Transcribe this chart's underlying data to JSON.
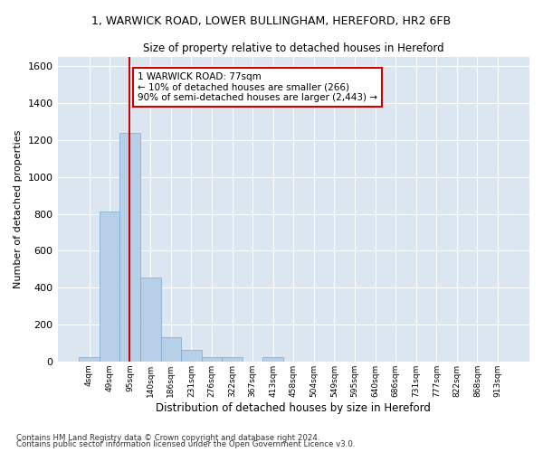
{
  "title_line1": "1, WARWICK ROAD, LOWER BULLINGHAM, HEREFORD, HR2 6FB",
  "title_line2": "Size of property relative to detached houses in Hereford",
  "xlabel": "Distribution of detached houses by size in Hereford",
  "ylabel": "Number of detached properties",
  "footnote1": "Contains HM Land Registry data © Crown copyright and database right 2024.",
  "footnote2": "Contains public sector information licensed under the Open Government Licence v3.0.",
  "annotation_line1": "1 WARWICK ROAD: 77sqm",
  "annotation_line2": "← 10% of detached houses are smaller (266)",
  "annotation_line3": "90% of semi-detached houses are larger (2,443) →",
  "bar_color": "#b8cfe8",
  "bar_edge_color": "#7aaad0",
  "vline_color": "#cc0000",
  "background_color": "#dce6f0",
  "grid_color": "#ffffff",
  "categories": [
    "4sqm",
    "49sqm",
    "95sqm",
    "140sqm",
    "186sqm",
    "231sqm",
    "276sqm",
    "322sqm",
    "367sqm",
    "413sqm",
    "458sqm",
    "504sqm",
    "549sqm",
    "595sqm",
    "640sqm",
    "686sqm",
    "731sqm",
    "777sqm",
    "822sqm",
    "868sqm",
    "913sqm"
  ],
  "values": [
    25,
    810,
    1240,
    455,
    130,
    65,
    25,
    25,
    0,
    25,
    0,
    0,
    0,
    0,
    0,
    0,
    0,
    0,
    0,
    0,
    0
  ],
  "vline_x": 1.98,
  "ylim": [
    0,
    1650
  ],
  "yticks": [
    0,
    200,
    400,
    600,
    800,
    1000,
    1200,
    1400,
    1600
  ]
}
